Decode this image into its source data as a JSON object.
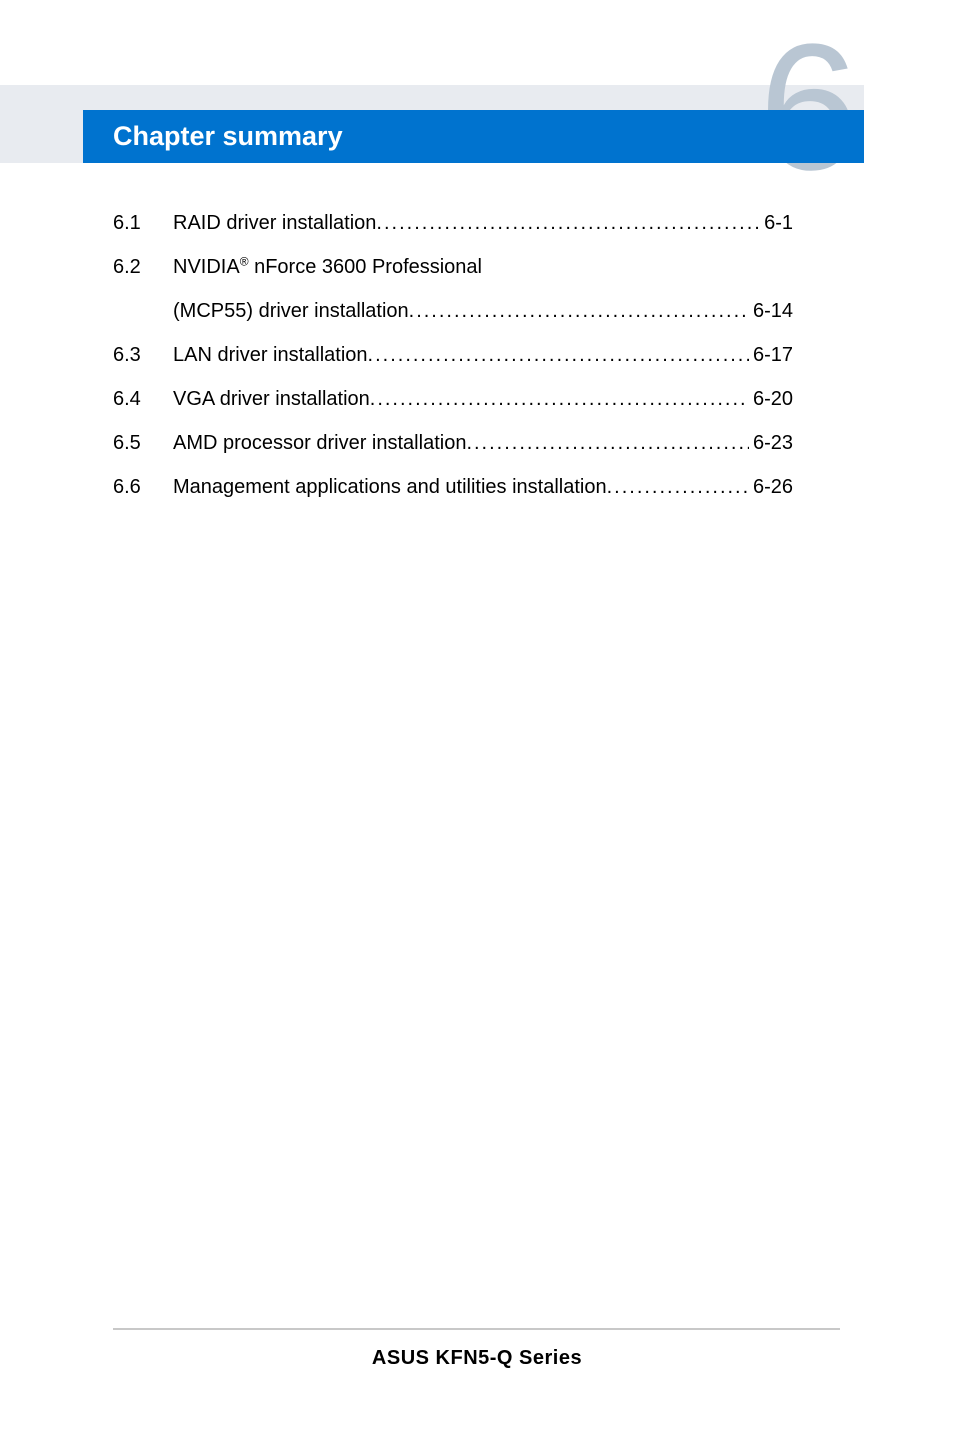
{
  "chapter": {
    "title": "Chapter summary",
    "number": "6"
  },
  "toc": [
    {
      "num": "6.1",
      "label": "RAID driver installation",
      "page": "6-1",
      "wrap": false
    },
    {
      "num": "6.2",
      "label": "NVIDIA® nForce 3600 Professional",
      "label2": "(MCP55) driver installation",
      "page": "6-14",
      "wrap": true
    },
    {
      "num": "6.3",
      "label": "LAN driver installation",
      "page": "6-17",
      "wrap": false
    },
    {
      "num": "6.4",
      "label": "VGA driver installation",
      "page": "6-20",
      "wrap": false
    },
    {
      "num": "6.5",
      "label": "AMD processor driver installation",
      "page": "6-23",
      "wrap": false
    },
    {
      "num": "6.6",
      "label": "Management applications and utilities installation",
      "page": "6-26",
      "wrap": false
    }
  ],
  "footer": "ASUS  KFN5-Q Series",
  "colors": {
    "banner_bg": "#e8ebf0",
    "banner_blue": "#0073cf",
    "chapter_num": "#b9c6d3",
    "text": "#000000",
    "footer_line": "#c8c8c8",
    "page_bg": "#ffffff"
  },
  "fonts": {
    "title_size": 27,
    "number_size": 180,
    "body_size": 20,
    "footer_size": 20
  }
}
